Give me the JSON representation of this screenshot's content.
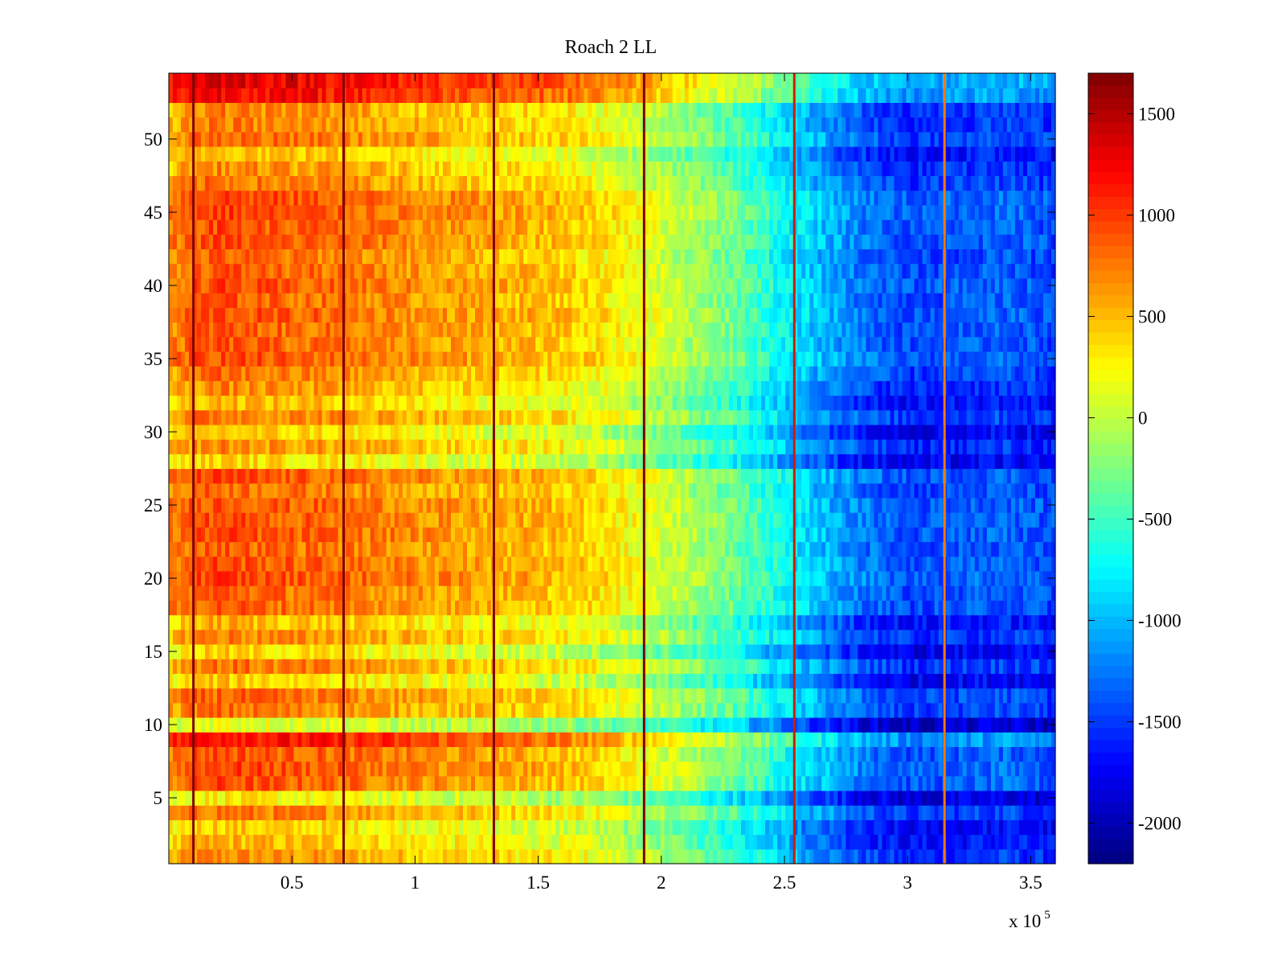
{
  "chart_data": {
    "type": "heatmap",
    "title": "Roach 2 LL",
    "xlabel": "",
    "ylabel": "",
    "x_multiplier": {
      "base": "x 10",
      "exponent": "5"
    },
    "xlim": [
      0,
      360000
    ],
    "ylim": [
      0.5,
      54.5
    ],
    "rows": 54,
    "x_ticks": [
      50000,
      100000,
      150000,
      200000,
      250000,
      300000,
      350000
    ],
    "x_tick_labels": [
      "0.5",
      "1",
      "1.5",
      "2",
      "2.5",
      "3",
      "3.5"
    ],
    "y_ticks": [
      5,
      10,
      15,
      20,
      25,
      30,
      35,
      40,
      45,
      50
    ],
    "y_tick_labels": [
      "5",
      "10",
      "15",
      "20",
      "25",
      "30",
      "35",
      "40",
      "45",
      "50"
    ],
    "colorbar": {
      "colormap": "jet",
      "clim": [
        -2200,
        1700
      ],
      "ticks": [
        1500,
        1000,
        500,
        0,
        -500,
        -1000,
        -1500,
        -2000
      ],
      "tick_labels": [
        "1500",
        "1000",
        "500",
        "0",
        "-500",
        "-1000",
        "-1500",
        "-2000"
      ]
    },
    "column_trend": {
      "x": [
        0,
        10000,
        20000,
        50000,
        60000,
        100000,
        130000,
        150000,
        170000,
        200000,
        230000,
        250000,
        280000,
        300000,
        340000,
        360000
      ],
      "values": [
        450,
        650,
        700,
        600,
        600,
        450,
        350,
        300,
        200,
        -100,
        -500,
        -900,
        -1400,
        -1600,
        -1500,
        -1600
      ]
    },
    "row_offsets": [
      0,
      -150,
      -250,
      100,
      -400,
      250,
      300,
      250,
      550,
      -500,
      100,
      150,
      -250,
      100,
      -300,
      50,
      -150,
      200,
      200,
      300,
      250,
      200,
      250,
      250,
      250,
      150,
      250,
      -300,
      0,
      -250,
      100,
      -150,
      0,
      100,
      250,
      200,
      200,
      250,
      200,
      250,
      200,
      150,
      250,
      250,
      300,
      300,
      100,
      0,
      -150,
      150,
      50,
      50,
      600,
      700
    ],
    "vertical_stripes": [
      {
        "x": 10000,
        "color": "#7f0000"
      },
      {
        "x": 71000,
        "color": "#7f0000"
      },
      {
        "x": 132000,
        "color": "#7f0000"
      },
      {
        "x": 193000,
        "color": "#7f0000"
      },
      {
        "x": 254000,
        "color": "#c81e00"
      },
      {
        "x": 315000,
        "color": "#ff7a00"
      }
    ],
    "grid": false,
    "legend": "none"
  }
}
